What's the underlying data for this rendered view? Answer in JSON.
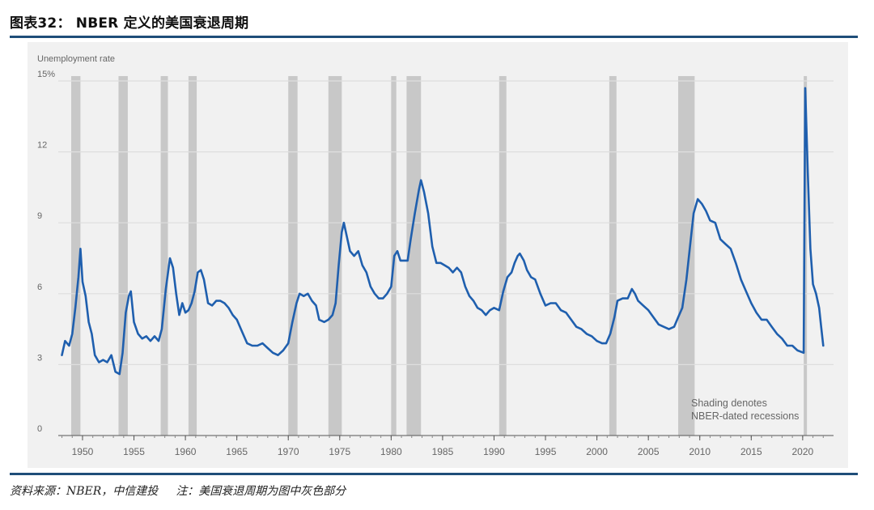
{
  "header": {
    "title": "图表32： NBER 定义的美国衰退周期"
  },
  "footer": {
    "source": "资料来源：NBER，中信建投",
    "note": "注：美国衰退周期为图中灰色部分"
  },
  "chart_data": {
    "type": "line",
    "title": "",
    "ylabel": "Unemployment rate",
    "xlabel": "",
    "xlim": [
      1947.8,
      2023.0
    ],
    "ylim": [
      0,
      15
    ],
    "y_ticks": [
      0,
      3,
      6,
      9,
      12,
      15
    ],
    "y_tick_labels": [
      "0",
      "3",
      "6",
      "9",
      "12",
      "15%"
    ],
    "x_ticks": [
      1950,
      1955,
      1960,
      1965,
      1970,
      1975,
      1980,
      1985,
      1990,
      1995,
      2000,
      2005,
      2010,
      2015,
      2020
    ],
    "x_tick_labels": [
      "1950",
      "1955",
      "1960",
      "1965",
      "1970",
      "1975",
      "1980",
      "1985",
      "1990",
      "1995",
      "2000",
      "2005",
      "2010",
      "2015",
      "2020"
    ],
    "grid": true,
    "annotation": [
      "Shading denotes",
      "NBER-dated recessions"
    ],
    "recessions": [
      [
        1948.9,
        1949.8
      ],
      [
        1953.5,
        1954.4
      ],
      [
        1957.6,
        1958.3
      ],
      [
        1960.3,
        1961.1
      ],
      [
        1970.0,
        1970.9
      ],
      [
        1973.9,
        1975.2
      ],
      [
        1980.0,
        1980.5
      ],
      [
        1981.5,
        1982.9
      ],
      [
        1990.5,
        1991.2
      ],
      [
        2001.2,
        2001.9
      ],
      [
        2007.9,
        2009.5
      ],
      [
        2020.1,
        2020.4
      ]
    ],
    "colors": {
      "line": "#1f5fae",
      "recession": "#c8c8c8",
      "grid": "#dedede",
      "axis": "#555555",
      "text": "#666666"
    },
    "series": [
      {
        "values": [
          [
            1948.0,
            3.4
          ],
          [
            1948.3,
            4.0
          ],
          [
            1948.7,
            3.8
          ],
          [
            1949.0,
            4.3
          ],
          [
            1949.3,
            5.4
          ],
          [
            1949.6,
            6.7
          ],
          [
            1949.8,
            7.9
          ],
          [
            1950.0,
            6.5
          ],
          [
            1950.3,
            5.9
          ],
          [
            1950.6,
            4.8
          ],
          [
            1950.9,
            4.3
          ],
          [
            1951.2,
            3.4
          ],
          [
            1951.6,
            3.1
          ],
          [
            1952.0,
            3.2
          ],
          [
            1952.4,
            3.1
          ],
          [
            1952.8,
            3.4
          ],
          [
            1953.2,
            2.7
          ],
          [
            1953.6,
            2.6
          ],
          [
            1953.9,
            3.5
          ],
          [
            1954.2,
            5.2
          ],
          [
            1954.5,
            5.9
          ],
          [
            1954.7,
            6.1
          ],
          [
            1955.0,
            4.8
          ],
          [
            1955.4,
            4.3
          ],
          [
            1955.8,
            4.1
          ],
          [
            1956.2,
            4.2
          ],
          [
            1956.6,
            4.0
          ],
          [
            1957.0,
            4.2
          ],
          [
            1957.4,
            4.0
          ],
          [
            1957.7,
            4.5
          ],
          [
            1958.1,
            6.2
          ],
          [
            1958.5,
            7.5
          ],
          [
            1958.8,
            7.1
          ],
          [
            1959.1,
            6.0
          ],
          [
            1959.4,
            5.1
          ],
          [
            1959.7,
            5.6
          ],
          [
            1960.0,
            5.2
          ],
          [
            1960.3,
            5.3
          ],
          [
            1960.6,
            5.6
          ],
          [
            1960.9,
            6.1
          ],
          [
            1961.2,
            6.9
          ],
          [
            1961.5,
            7.0
          ],
          [
            1961.8,
            6.6
          ],
          [
            1962.2,
            5.6
          ],
          [
            1962.6,
            5.5
          ],
          [
            1963.0,
            5.7
          ],
          [
            1963.4,
            5.7
          ],
          [
            1963.8,
            5.6
          ],
          [
            1964.2,
            5.4
          ],
          [
            1964.6,
            5.1
          ],
          [
            1965.0,
            4.9
          ],
          [
            1965.5,
            4.4
          ],
          [
            1966.0,
            3.9
          ],
          [
            1966.5,
            3.8
          ],
          [
            1967.0,
            3.8
          ],
          [
            1967.5,
            3.9
          ],
          [
            1968.0,
            3.7
          ],
          [
            1968.5,
            3.5
          ],
          [
            1969.0,
            3.4
          ],
          [
            1969.5,
            3.6
          ],
          [
            1970.0,
            3.9
          ],
          [
            1970.4,
            4.8
          ],
          [
            1970.8,
            5.6
          ],
          [
            1971.1,
            6.0
          ],
          [
            1971.5,
            5.9
          ],
          [
            1971.9,
            6.0
          ],
          [
            1972.3,
            5.7
          ],
          [
            1972.7,
            5.5
          ],
          [
            1973.0,
            4.9
          ],
          [
            1973.5,
            4.8
          ],
          [
            1973.9,
            4.9
          ],
          [
            1974.3,
            5.1
          ],
          [
            1974.6,
            5.6
          ],
          [
            1974.9,
            7.2
          ],
          [
            1975.2,
            8.6
          ],
          [
            1975.4,
            9.0
          ],
          [
            1975.7,
            8.4
          ],
          [
            1976.0,
            7.8
          ],
          [
            1976.4,
            7.6
          ],
          [
            1976.8,
            7.8
          ],
          [
            1977.2,
            7.2
          ],
          [
            1977.6,
            6.9
          ],
          [
            1978.0,
            6.3
          ],
          [
            1978.4,
            6.0
          ],
          [
            1978.8,
            5.8
          ],
          [
            1979.2,
            5.8
          ],
          [
            1979.6,
            6.0
          ],
          [
            1980.0,
            6.3
          ],
          [
            1980.3,
            7.6
          ],
          [
            1980.6,
            7.8
          ],
          [
            1980.9,
            7.4
          ],
          [
            1981.3,
            7.4
          ],
          [
            1981.6,
            7.4
          ],
          [
            1981.9,
            8.3
          ],
          [
            1982.3,
            9.4
          ],
          [
            1982.7,
            10.4
          ],
          [
            1982.9,
            10.8
          ],
          [
            1983.2,
            10.3
          ],
          [
            1983.6,
            9.4
          ],
          [
            1984.0,
            8.0
          ],
          [
            1984.4,
            7.3
          ],
          [
            1984.8,
            7.3
          ],
          [
            1985.2,
            7.2
          ],
          [
            1985.6,
            7.1
          ],
          [
            1986.0,
            6.9
          ],
          [
            1986.4,
            7.1
          ],
          [
            1986.8,
            6.9
          ],
          [
            1987.2,
            6.3
          ],
          [
            1987.6,
            5.9
          ],
          [
            1988.0,
            5.7
          ],
          [
            1988.4,
            5.4
          ],
          [
            1988.8,
            5.3
          ],
          [
            1989.2,
            5.1
          ],
          [
            1989.6,
            5.3
          ],
          [
            1990.0,
            5.4
          ],
          [
            1990.5,
            5.3
          ],
          [
            1990.9,
            6.1
          ],
          [
            1991.3,
            6.7
          ],
          [
            1991.7,
            6.9
          ],
          [
            1992.0,
            7.3
          ],
          [
            1992.3,
            7.6
          ],
          [
            1992.5,
            7.7
          ],
          [
            1992.9,
            7.4
          ],
          [
            1993.2,
            7.0
          ],
          [
            1993.6,
            6.7
          ],
          [
            1994.0,
            6.6
          ],
          [
            1994.5,
            6.0
          ],
          [
            1995.0,
            5.5
          ],
          [
            1995.5,
            5.6
          ],
          [
            1996.0,
            5.6
          ],
          [
            1996.5,
            5.3
          ],
          [
            1997.0,
            5.2
          ],
          [
            1997.5,
            4.9
          ],
          [
            1998.0,
            4.6
          ],
          [
            1998.5,
            4.5
          ],
          [
            1999.0,
            4.3
          ],
          [
            1999.5,
            4.2
          ],
          [
            2000.0,
            4.0
          ],
          [
            2000.5,
            3.9
          ],
          [
            2000.9,
            3.9
          ],
          [
            2001.3,
            4.3
          ],
          [
            2001.7,
            5.0
          ],
          [
            2002.0,
            5.7
          ],
          [
            2002.5,
            5.8
          ],
          [
            2003.0,
            5.8
          ],
          [
            2003.4,
            6.2
          ],
          [
            2003.7,
            6.0
          ],
          [
            2004.0,
            5.7
          ],
          [
            2004.5,
            5.5
          ],
          [
            2005.0,
            5.3
          ],
          [
            2005.5,
            5.0
          ],
          [
            2006.0,
            4.7
          ],
          [
            2006.5,
            4.6
          ],
          [
            2007.0,
            4.5
          ],
          [
            2007.5,
            4.6
          ],
          [
            2007.9,
            5.0
          ],
          [
            2008.3,
            5.4
          ],
          [
            2008.7,
            6.6
          ],
          [
            2009.0,
            7.8
          ],
          [
            2009.4,
            9.4
          ],
          [
            2009.8,
            10.0
          ],
          [
            2010.2,
            9.8
          ],
          [
            2010.6,
            9.5
          ],
          [
            2011.0,
            9.1
          ],
          [
            2011.5,
            9.0
          ],
          [
            2012.0,
            8.3
          ],
          [
            2012.5,
            8.1
          ],
          [
            2013.0,
            7.9
          ],
          [
            2013.5,
            7.3
          ],
          [
            2014.0,
            6.6
          ],
          [
            2014.5,
            6.1
          ],
          [
            2015.0,
            5.6
          ],
          [
            2015.5,
            5.2
          ],
          [
            2016.0,
            4.9
          ],
          [
            2016.5,
            4.9
          ],
          [
            2017.0,
            4.6
          ],
          [
            2017.5,
            4.3
          ],
          [
            2018.0,
            4.1
          ],
          [
            2018.5,
            3.8
          ],
          [
            2019.0,
            3.8
          ],
          [
            2019.5,
            3.6
          ],
          [
            2020.1,
            3.5
          ],
          [
            2020.25,
            14.7
          ],
          [
            2020.5,
            11.1
          ],
          [
            2020.75,
            7.9
          ],
          [
            2021.0,
            6.4
          ],
          [
            2021.3,
            6.0
          ],
          [
            2021.6,
            5.4
          ],
          [
            2021.8,
            4.6
          ],
          [
            2022.0,
            3.8
          ]
        ]
      }
    ]
  }
}
